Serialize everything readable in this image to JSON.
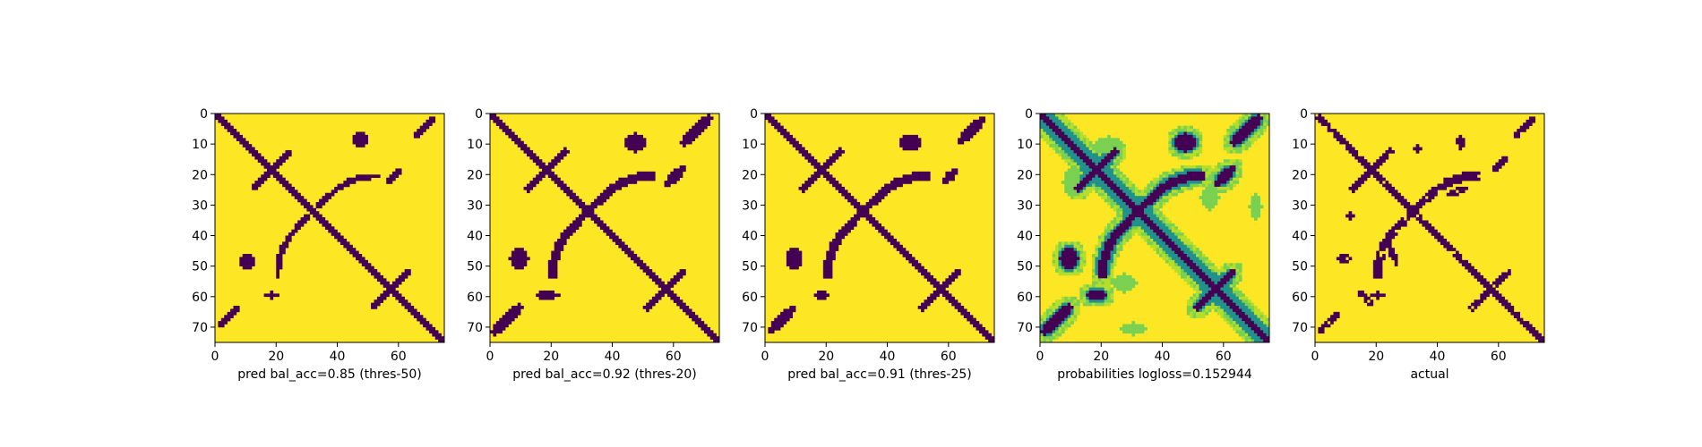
{
  "figure": {
    "colors": {
      "low": "#440154",
      "mid": "#21918c",
      "light": "#7ad151",
      "high": "#fde725"
    }
  },
  "chart_data": [
    {
      "type": "heatmap",
      "title": "",
      "xlabel": "pred bal_acc=0.85 (thres-50)",
      "ylabel": "",
      "matrix_size": 75,
      "xticks": [
        0,
        20,
        40,
        60
      ],
      "yticks": [
        0,
        10,
        20,
        30,
        40,
        50,
        60,
        70
      ],
      "xlim": [
        0,
        75
      ],
      "ylim": [
        75,
        0
      ],
      "variant": "binary",
      "blobs": [
        {
          "cx": 47,
          "cy": 8,
          "rx": 2.6,
          "ry": 2.2
        },
        {
          "cx": 10,
          "cy": 48,
          "rx": 2.2,
          "ry": 2.6
        },
        {
          "cx": 18,
          "cy": 59,
          "rx": 2.0,
          "ry": 1.0
        },
        {
          "cx": 68,
          "cy": 4,
          "rx": 5.5,
          "ry": 1.3,
          "rot": -45
        },
        {
          "cx": 4,
          "cy": 66,
          "rx": 5.5,
          "ry": 1.3,
          "rot": -45
        },
        {
          "cx": 58,
          "cy": 20,
          "rx": 3.0,
          "ry": 1.2,
          "rot": -45
        }
      ]
    },
    {
      "type": "heatmap",
      "title": "",
      "xlabel": "pred bal_acc=0.92 (thres-20)",
      "ylabel": "",
      "matrix_size": 75,
      "xticks": [
        0,
        20,
        40,
        60
      ],
      "yticks": [
        0,
        10,
        20,
        30,
        40,
        50,
        60,
        70
      ],
      "xlim": [
        0,
        75
      ],
      "ylim": [
        75,
        0
      ],
      "variant": "binary-wide",
      "blobs": [
        {
          "cx": 47,
          "cy": 9,
          "rx": 3.5,
          "ry": 3.0
        },
        {
          "cx": 9,
          "cy": 47,
          "rx": 3.0,
          "ry": 3.5
        },
        {
          "cx": 18,
          "cy": 59,
          "rx": 3.0,
          "ry": 1.4
        },
        {
          "cx": 67,
          "cy": 5,
          "rx": 7,
          "ry": 1.8,
          "rot": -45
        },
        {
          "cx": 5,
          "cy": 67,
          "rx": 7,
          "ry": 1.8,
          "rot": -45
        },
        {
          "cx": 60,
          "cy": 20,
          "rx": 4.5,
          "ry": 1.6,
          "rot": -45
        },
        {
          "cx": 20,
          "cy": 59,
          "rx": 2.0,
          "ry": 1.0
        }
      ]
    },
    {
      "type": "heatmap",
      "title": "",
      "xlabel": "pred bal_acc=0.91 (thres-25)",
      "ylabel": "",
      "matrix_size": 75,
      "xticks": [
        0,
        20,
        40,
        60
      ],
      "yticks": [
        0,
        10,
        20,
        30,
        40,
        50,
        60,
        70
      ],
      "xlim": [
        0,
        75
      ],
      "ylim": [
        75,
        0
      ],
      "variant": "binary-wide",
      "blobs": [
        {
          "cx": 47,
          "cy": 9,
          "rx": 3.3,
          "ry": 2.8
        },
        {
          "cx": 9,
          "cy": 47,
          "rx": 2.8,
          "ry": 3.3
        },
        {
          "cx": 18,
          "cy": 59,
          "rx": 2.8,
          "ry": 1.3
        },
        {
          "cx": 67,
          "cy": 5,
          "rx": 6.5,
          "ry": 1.7,
          "rot": -45
        },
        {
          "cx": 5,
          "cy": 67,
          "rx": 6.5,
          "ry": 1.7,
          "rot": -45
        },
        {
          "cx": 60,
          "cy": 20,
          "rx": 4.0,
          "ry": 1.5,
          "rot": -45
        }
      ]
    },
    {
      "type": "heatmap",
      "title": "",
      "xlabel": "probabilities logloss=0.152944",
      "ylabel": "",
      "matrix_size": 75,
      "xticks": [
        0,
        20,
        40,
        60
      ],
      "yticks": [
        0,
        10,
        20,
        30,
        40,
        50,
        60,
        70
      ],
      "xlim": [
        0,
        75
      ],
      "ylim": [
        75,
        0
      ],
      "variant": "probability",
      "blobs": [
        {
          "cx": 47,
          "cy": 9,
          "rx": 3.5,
          "ry": 3.0
        },
        {
          "cx": 9,
          "cy": 47,
          "rx": 3.0,
          "ry": 3.5
        },
        {
          "cx": 18,
          "cy": 59,
          "rx": 3.0,
          "ry": 1.4
        },
        {
          "cx": 67,
          "cy": 5,
          "rx": 7,
          "ry": 1.8,
          "rot": -45
        },
        {
          "cx": 5,
          "cy": 67,
          "rx": 7,
          "ry": 1.8,
          "rot": -45
        },
        {
          "cx": 60,
          "cy": 20,
          "rx": 4.5,
          "ry": 1.6,
          "rot": -45
        },
        {
          "cx": 22,
          "cy": 10,
          "rx": 5,
          "ry": 3,
          "soft": true
        },
        {
          "cx": 10,
          "cy": 22,
          "rx": 3,
          "ry": 5,
          "soft": true
        },
        {
          "cx": 55,
          "cy": 27,
          "rx": 3,
          "ry": 4,
          "soft": true
        },
        {
          "cx": 27,
          "cy": 55,
          "rx": 4,
          "ry": 3,
          "soft": true
        },
        {
          "cx": 70,
          "cy": 30,
          "rx": 2,
          "ry": 4,
          "soft": true
        },
        {
          "cx": 30,
          "cy": 70,
          "rx": 4,
          "ry": 2,
          "soft": true
        }
      ]
    },
    {
      "type": "heatmap",
      "title": "",
      "xlabel": "actual",
      "ylabel": "",
      "matrix_size": 75,
      "xticks": [
        0,
        20,
        40,
        60
      ],
      "yticks": [
        0,
        10,
        20,
        30,
        40,
        50,
        60,
        70
      ],
      "xlim": [
        0,
        75
      ],
      "ylim": [
        75,
        0
      ],
      "variant": "actual",
      "blobs": [
        {
          "cx": 47,
          "cy": 9,
          "rx": 1.5,
          "ry": 2.5
        },
        {
          "cx": 60,
          "cy": 16,
          "rx": 4,
          "ry": 1.2,
          "rot": -45
        },
        {
          "cx": 68,
          "cy": 4,
          "rx": 5,
          "ry": 1.1,
          "rot": -45
        },
        {
          "cx": 16,
          "cy": 60,
          "rx": 1.2,
          "ry": 4,
          "rot": -45
        },
        {
          "cx": 4,
          "cy": 68,
          "rx": 5,
          "ry": 1.1,
          "rot": -45
        },
        {
          "cx": 9,
          "cy": 47,
          "rx": 2.5,
          "ry": 1.5
        },
        {
          "cx": 20,
          "cy": 59,
          "rx": 2.5,
          "ry": 1.0
        },
        {
          "cx": 33,
          "cy": 11,
          "rx": 1.5,
          "ry": 1.2
        },
        {
          "cx": 11,
          "cy": 33,
          "rx": 1.2,
          "ry": 1.5
        },
        {
          "cx": 46,
          "cy": 25,
          "rx": 3.5,
          "ry": 1.0,
          "rot": -20
        },
        {
          "cx": 25,
          "cy": 46,
          "rx": 1.0,
          "ry": 3.5,
          "rot": -20
        }
      ]
    }
  ]
}
